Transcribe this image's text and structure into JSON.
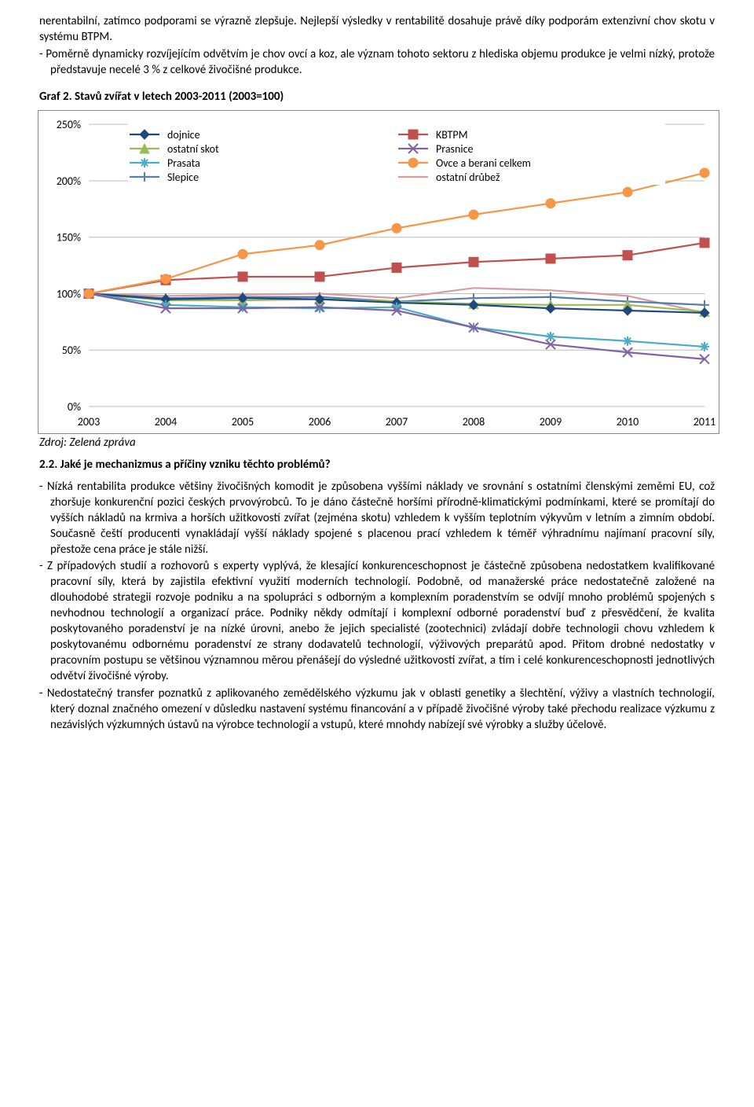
{
  "intro_lines": [
    "nerentabilní, zatímco podporami se výrazně zlepšuje. Nejlepší výsledky v rentabilitě dosahuje právě díky podporám extenzivní chov skotu v systému BTPM.",
    "- Poměrně dynamicky rozvíjejícím odvětvím je chov ovcí a koz, ale význam tohoto sektoru z hlediska objemu produkce je velmi nízký, protože představuje necelé 3 % z celkové živočišné produkce."
  ],
  "chart_title": "Graf 2. Stavů zvířat v letech 2003-2011 (2003=100)",
  "chart": {
    "type": "line",
    "x_labels": [
      "2003",
      "2004",
      "2005",
      "2006",
      "2007",
      "2008",
      "2009",
      "2010",
      "2011"
    ],
    "y_ticks": [
      0,
      50,
      100,
      150,
      200,
      250
    ],
    "y_tick_labels": [
      "0%",
      "50%",
      "100%",
      "150%",
      "200%",
      "250%"
    ],
    "ylim": [
      0,
      255
    ],
    "plot_bg": "#ffffff",
    "grid_color": "#bdbdbd",
    "border_color": "#888888",
    "legend_bg": "#ffffff",
    "legend_items": [
      {
        "label": "dojnice",
        "color": "#1f497d",
        "marker": "diamond"
      },
      {
        "label": "KBTPM",
        "color": "#c0504d",
        "marker": "square"
      },
      {
        "label": "ostatní skot",
        "color": "#9bbb59",
        "marker": "triangle"
      },
      {
        "label": "Prasnice",
        "color": "#8064a2",
        "marker": "x"
      },
      {
        "label": "Prasata",
        "color": "#4bacc6",
        "marker": "star"
      },
      {
        "label": "Ovce a berani celkem",
        "color": "#f79646",
        "marker": "circle"
      },
      {
        "label": "Slepice",
        "color": "#5a7ca8",
        "marker": "plus"
      },
      {
        "label": "ostatní drůbež",
        "color": "#d99ba0",
        "marker": "none"
      }
    ],
    "series": {
      "dojnice": {
        "color": "#1f497d",
        "marker": "diamond",
        "values": [
          100,
          95,
          96,
          95,
          92,
          90,
          87,
          85,
          83
        ]
      },
      "KBTPM": {
        "color": "#c0504d",
        "marker": "square",
        "values": [
          100,
          112,
          115,
          115,
          123,
          128,
          131,
          134,
          145
        ]
      },
      "ostatni_skot": {
        "color": "#9bbb59",
        "marker": "triangle",
        "values": [
          100,
          94,
          94,
          95,
          93,
          91,
          90,
          90,
          84
        ]
      },
      "Prasnice": {
        "color": "#8064a2",
        "marker": "x",
        "values": [
          100,
          87,
          87,
          88,
          85,
          70,
          55,
          48,
          42
        ]
      },
      "Prasata": {
        "color": "#4bacc6",
        "marker": "star",
        "values": [
          100,
          90,
          88,
          87,
          88,
          70,
          62,
          58,
          53
        ]
      },
      "Ovce": {
        "color": "#f79646",
        "marker": "circle",
        "values": [
          100,
          113,
          135,
          143,
          158,
          170,
          180,
          190,
          207
        ]
      },
      "Slepice": {
        "color": "#5a7ca8",
        "marker": "plus",
        "values": [
          100,
          96,
          97,
          97,
          93,
          96,
          97,
          93,
          90
        ]
      },
      "ostatni_drubez": {
        "color": "#d99ba0",
        "marker": "none",
        "values": [
          100,
          98,
          99,
          100,
          96,
          105,
          103,
          98,
          83
        ]
      }
    },
    "axis_font_size": 14,
    "legend_font_size": 14,
    "line_width": 2.2
  },
  "source_line": "Zdroj: Zelená zpráva",
  "section_heading": "2.2. Jaké je mechanizmus a příčiny vzniku těchto problémů?",
  "body_items": [
    "- Nízká rentabilita produkce většiny živočišných komodit je způsobena vyššími náklady ve srovnání s ostatními členskými zeměmi EU, což zhoršuje konkurenční pozici českých prvovýrobců. To je dáno částečně horšími přírodně-klimatickými podmínkami, které se promítají do vyšších nákladů na krmiva a horších užitkovostí zvířat (zejména skotu) vzhledem k vyšším teplotním výkyvům v letním a zimním období. Současně čeští producenti vynakládají vyšší náklady spojené s placenou prací vzhledem k téměř výhradnímu najímaní pracovní síly, přestože cena práce je stále nižší.",
    "- Z případových studií a rozhovorů s experty vyplývá, že klesající konkurenceschopnost je částečně způsobena nedostatkem kvalifikované pracovní síly, která by zajistila efektivní využití moderních technologií. Podobně, od manažerské práce nedostatečně založené na dlouhodobé strategii rozvoje podniku a na spolupráci s odborným a komplexním poradenstvím se odvíjí mnoho problémů spojených s nevhodnou technologií a organizací práce. Podniky někdy odmítají i komplexní odborné poradenství buď z přesvědčení, že kvalita poskytovaného poradenství je na nízké úrovni, anebo že jejich specialisté (zootechnici) zvládají dobře technologii chovu vzhledem k poskytovanému odbornému poradenství ze strany dodavatelů technologií, výživových preparátů apod. Přitom drobné nedostatky v pracovním postupu se většinou významnou měrou přenášejí do výsledné užitkovosti zvířat, a tím i celé konkurenceschopnosti jednotlivých odvětví živočišné výroby.",
    "- Nedostatečný transfer poznatků z aplikovaného zemědělského výzkumu jak v oblasti genetiky a šlechtění, výživy a vlastních technologií, který doznal značného omezení v důsledku nastavení systému financování a v případě živočišné výroby také přechodu realizace výzkumu z nezávislých výzkumných ústavů na výrobce technologií a vstupů, které mnohdy nabízejí své výrobky a služby účelově."
  ]
}
